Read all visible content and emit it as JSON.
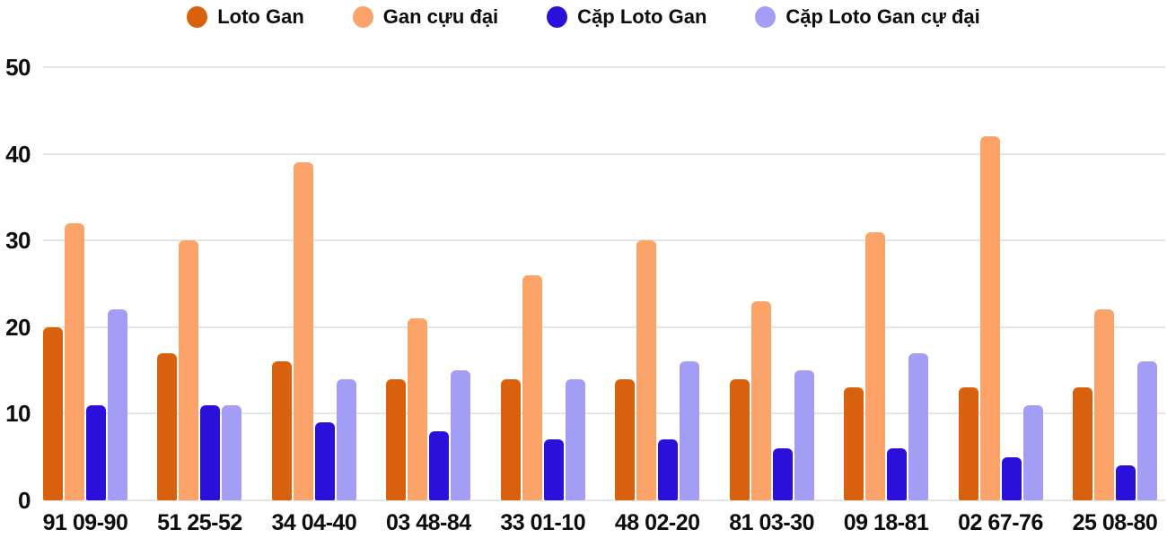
{
  "chart_data": {
    "type": "bar",
    "title": "",
    "xlabel": "",
    "ylabel": "",
    "ylim": [
      0,
      50
    ],
    "yticks": [
      0,
      10,
      20,
      30,
      40,
      50
    ],
    "grid": true,
    "legend_position": "top",
    "categories": [
      "91 09-90",
      "51 25-52",
      "34 04-40",
      "03 48-84",
      "33 01-10",
      "48 02-20",
      "81 03-30",
      "09 18-81",
      "02 67-76",
      "25 08-80"
    ],
    "series": [
      {
        "name": "Loto Gan",
        "color": "#d8610d",
        "values": [
          20,
          17,
          16,
          14,
          14,
          14,
          14,
          13,
          13,
          13
        ]
      },
      {
        "name": "Gan cựu đại",
        "color": "#fba368",
        "values": [
          32,
          30,
          39,
          21,
          26,
          30,
          23,
          31,
          42,
          22
        ]
      },
      {
        "name": "Cặp Loto Gan",
        "color": "#2b10da",
        "values": [
          11,
          11,
          9,
          8,
          7,
          7,
          6,
          6,
          5,
          4
        ]
      },
      {
        "name": "Cặp Loto Gan cự đại",
        "color": "#a49df6",
        "values": [
          22,
          11,
          14,
          15,
          14,
          16,
          15,
          17,
          11,
          16
        ]
      }
    ]
  },
  "colors": {
    "background": "#ffffff",
    "gridline": "#e5e5e5",
    "text": "#0d0d0d"
  }
}
